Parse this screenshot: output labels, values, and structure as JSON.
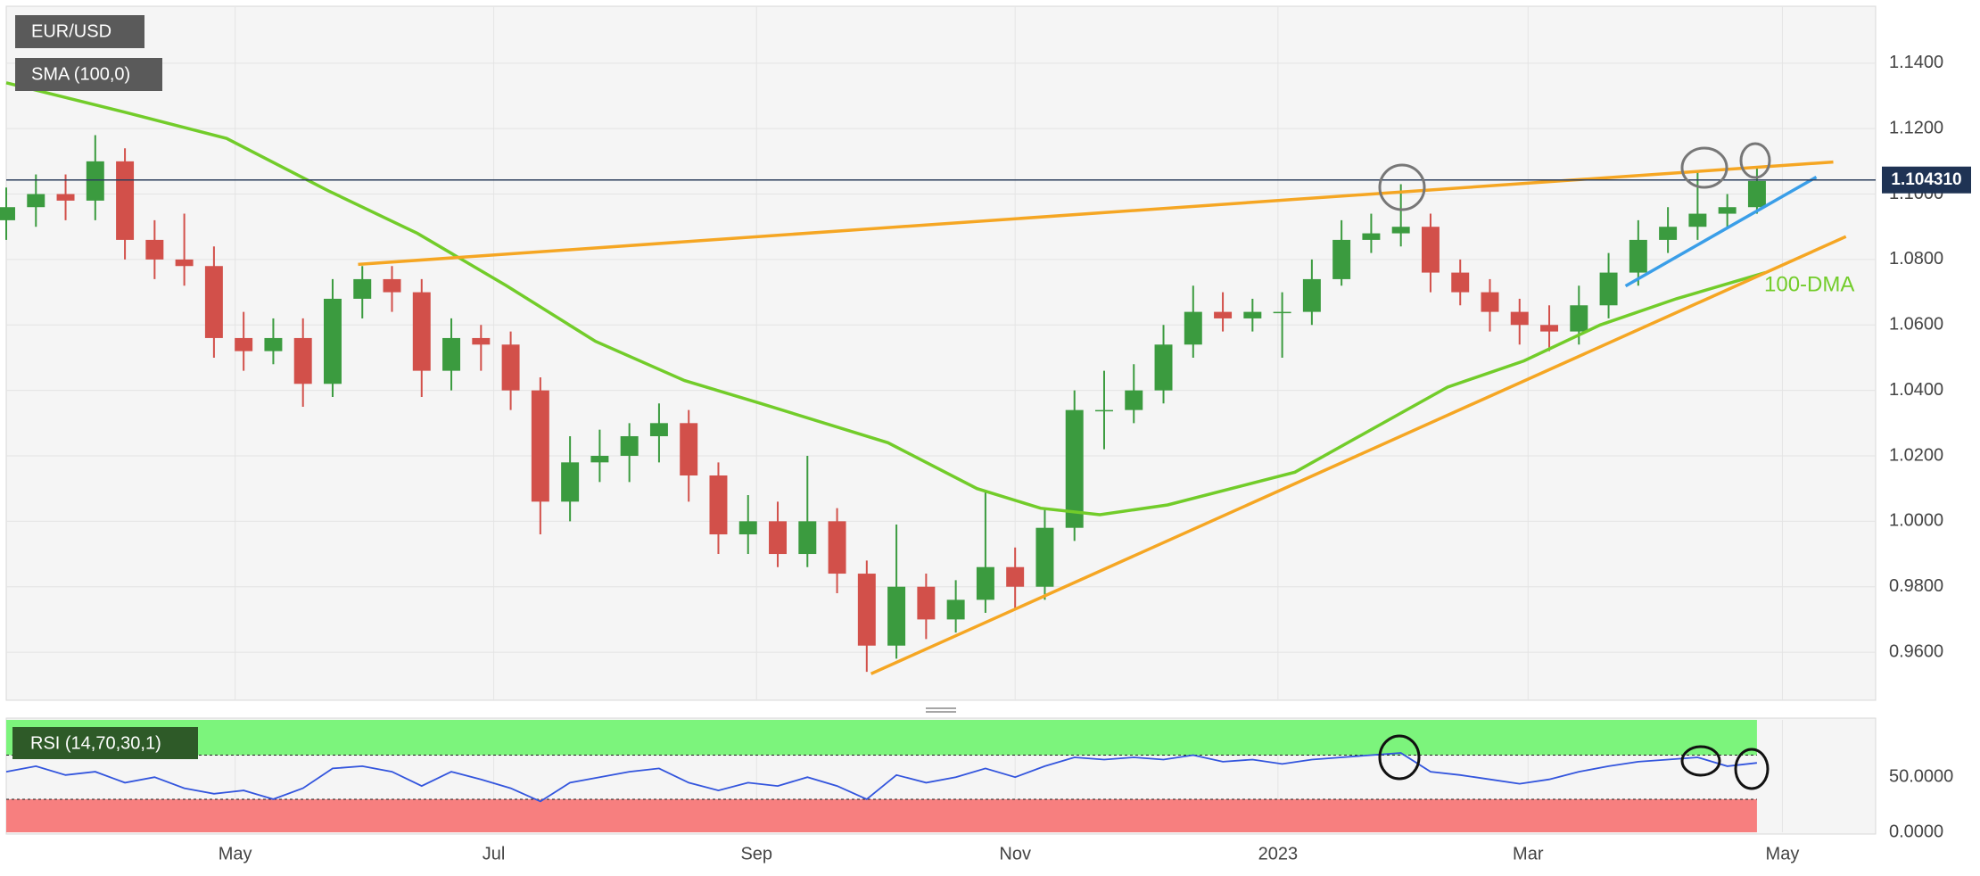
{
  "chart_data": [
    {
      "type": "candlestick",
      "name": "EUR/USD",
      "up_color": "#3b9b3f",
      "down_color": "#d2504a",
      "xlim": [
        0,
        441
      ],
      "ylim": [
        0.9453,
        1.1574
      ],
      "yticks": [
        {
          "value": 0.96,
          "label": "0.9600"
        },
        {
          "value": 0.98,
          "label": "0.9800"
        },
        {
          "value": 1.0,
          "label": "1.0000"
        },
        {
          "value": 1.02,
          "label": "1.0200"
        },
        {
          "value": 1.04,
          "label": "1.0400"
        },
        {
          "value": 1.06,
          "label": "1.0600"
        },
        {
          "value": 1.08,
          "label": "1.0800"
        },
        {
          "value": 1.1,
          "label": "1.1000"
        },
        {
          "value": 1.12,
          "label": "1.1200"
        },
        {
          "value": 1.14,
          "label": "1.1400"
        }
      ],
      "grid": true,
      "x": [
        0,
        7,
        14,
        21,
        28,
        35,
        42,
        49,
        56,
        63,
        70,
        77,
        84,
        91,
        98,
        105,
        112,
        119,
        126,
        133,
        140,
        147,
        154,
        161,
        168,
        175,
        182,
        189,
        196,
        203,
        210,
        217,
        224,
        231,
        238,
        245,
        252,
        259,
        266,
        273,
        280,
        287,
        294,
        301,
        308,
        315,
        322,
        329,
        336,
        343,
        350,
        357,
        364,
        371,
        378,
        385,
        392,
        399,
        406,
        413
      ],
      "open": [
        1.092,
        1.096,
        1.1,
        1.098,
        1.11,
        1.086,
        1.08,
        1.078,
        1.056,
        1.052,
        1.056,
        1.042,
        1.068,
        1.074,
        1.07,
        1.046,
        1.056,
        1.054,
        1.04,
        1.006,
        1.018,
        1.02,
        1.026,
        1.03,
        1.014,
        0.996,
        1.0,
        0.99,
        1.0,
        0.984,
        0.962,
        0.98,
        0.97,
        0.976,
        0.986,
        0.98,
        0.998,
        1.034,
        1.034,
        1.04,
        1.054,
        1.064,
        1.062,
        1.064,
        1.064,
        1.074,
        1.086,
        1.088,
        1.09,
        1.076,
        1.07,
        1.064,
        1.06,
        1.058,
        1.066,
        1.076,
        1.086,
        1.09,
        1.094,
        1.096
      ],
      "high": [
        1.102,
        1.106,
        1.106,
        1.118,
        1.114,
        1.092,
        1.094,
        1.084,
        1.064,
        1.062,
        1.062,
        1.074,
        1.078,
        1.078,
        1.074,
        1.062,
        1.06,
        1.058,
        1.044,
        1.026,
        1.028,
        1.03,
        1.036,
        1.034,
        1.018,
        1.008,
        1.006,
        1.02,
        1.004,
        0.988,
        0.999,
        0.984,
        0.982,
        1.009,
        0.992,
        1.004,
        1.04,
        1.046,
        1.048,
        1.06,
        1.072,
        1.07,
        1.068,
        1.07,
        1.08,
        1.092,
        1.094,
        1.103,
        1.094,
        1.08,
        1.074,
        1.068,
        1.066,
        1.072,
        1.082,
        1.092,
        1.096,
        1.107,
        1.1,
        1.108
      ],
      "low": [
        1.086,
        1.09,
        1.092,
        1.092,
        1.08,
        1.074,
        1.072,
        1.05,
        1.046,
        1.048,
        1.035,
        1.038,
        1.062,
        1.064,
        1.038,
        1.04,
        1.046,
        1.034,
        0.996,
        1.0,
        1.012,
        1.012,
        1.018,
        1.006,
        0.99,
        0.99,
        0.986,
        0.986,
        0.978,
        0.954,
        0.958,
        0.964,
        0.966,
        0.972,
        0.973,
        0.976,
        0.994,
        1.022,
        1.03,
        1.036,
        1.05,
        1.058,
        1.058,
        1.05,
        1.06,
        1.072,
        1.082,
        1.084,
        1.07,
        1.066,
        1.058,
        1.054,
        1.052,
        1.054,
        1.062,
        1.072,
        1.082,
        1.086,
        1.09,
        1.094
      ],
      "close": [
        1.096,
        1.1,
        1.098,
        1.11,
        1.086,
        1.08,
        1.078,
        1.056,
        1.052,
        1.056,
        1.042,
        1.068,
        1.074,
        1.07,
        1.046,
        1.056,
        1.054,
        1.04,
        1.006,
        1.018,
        1.02,
        1.026,
        1.03,
        1.014,
        0.996,
        1.0,
        0.99,
        1.0,
        0.984,
        0.962,
        0.98,
        0.97,
        0.976,
        0.986,
        0.98,
        0.998,
        1.034,
        1.034,
        1.04,
        1.054,
        1.064,
        1.062,
        1.064,
        1.064,
        1.074,
        1.086,
        1.088,
        1.09,
        1.076,
        1.07,
        1.064,
        1.06,
        1.058,
        1.066,
        1.076,
        1.086,
        1.09,
        1.094,
        1.096,
        1.104
      ],
      "series": [
        {
          "name": "SMA (100,0)",
          "color": "#72cc2a",
          "x": [
            0,
            28,
            52,
            76,
            97,
            118,
            139,
            160,
            178,
            208,
            229,
            244,
            258,
            274,
            304,
            322,
            340,
            358,
            376,
            394,
            415
          ],
          "values": [
            1.134,
            1.125,
            1.117,
            1.101,
            1.088,
            1.072,
            1.055,
            1.043,
            1.036,
            1.024,
            1.01,
            1.004,
            1.002,
            1.005,
            1.015,
            1.028,
            1.041,
            1.049,
            1.06,
            1.068,
            1.076
          ]
        }
      ],
      "annotation": "100-DMA",
      "trendlines": [
        {
          "color": "#f5a623",
          "x": [
            83,
            431
          ],
          "values": [
            1.0785,
            1.1098
          ]
        },
        {
          "color": "#f5a623",
          "x": [
            204,
            434
          ],
          "values": [
            0.9534,
            1.087
          ]
        },
        {
          "color": "#3a9ee8",
          "x": [
            382,
            427
          ],
          "values": [
            1.0719,
            1.1052
          ]
        }
      ],
      "last_price": {
        "value": 1.10431,
        "label": "1.104310"
      }
    },
    {
      "type": "line",
      "name": "RSI (14,70,30,1)",
      "color": "#3355dd",
      "xlim": [
        0,
        441
      ],
      "xticks": [
        {
          "value": 54,
          "label": "May"
        },
        {
          "value": 115,
          "label": "Jul"
        },
        {
          "value": 177,
          "label": "Sep"
        },
        {
          "value": 238,
          "label": "Nov"
        },
        {
          "value": 300,
          "label": "2023"
        },
        {
          "value": 359,
          "label": "Mar"
        },
        {
          "value": 419,
          "label": "May"
        }
      ],
      "ylim": [
        0,
        102
      ],
      "yticks": [
        {
          "value": 0,
          "label": "0.0000"
        },
        {
          "value": 50,
          "label": "50.0000"
        }
      ],
      "overbought": 70,
      "oversold": 30,
      "overbought_color": "#7cf47c",
      "oversold_color": "#f77f7f",
      "x": [
        0,
        7,
        14,
        21,
        28,
        35,
        42,
        49,
        56,
        63,
        70,
        77,
        84,
        91,
        98,
        105,
        112,
        119,
        126,
        133,
        140,
        147,
        154,
        161,
        168,
        175,
        182,
        189,
        196,
        203,
        210,
        217,
        224,
        231,
        238,
        245,
        252,
        259,
        266,
        273,
        280,
        287,
        294,
        301,
        308,
        315,
        322,
        329,
        336,
        343,
        350,
        357,
        364,
        371,
        378,
        385,
        392,
        399,
        406,
        413
      ],
      "values": [
        55,
        60,
        52,
        55,
        45,
        50,
        40,
        35,
        38,
        30,
        40,
        58,
        60,
        55,
        42,
        55,
        48,
        40,
        28,
        45,
        50,
        55,
        58,
        45,
        38,
        45,
        42,
        50,
        42,
        30,
        52,
        45,
        50,
        58,
        50,
        60,
        68,
        66,
        68,
        66,
        70,
        64,
        66,
        62,
        66,
        68,
        70,
        72,
        55,
        52,
        48,
        44,
        48,
        55,
        60,
        64,
        66,
        68,
        60,
        63
      ]
    }
  ]
}
